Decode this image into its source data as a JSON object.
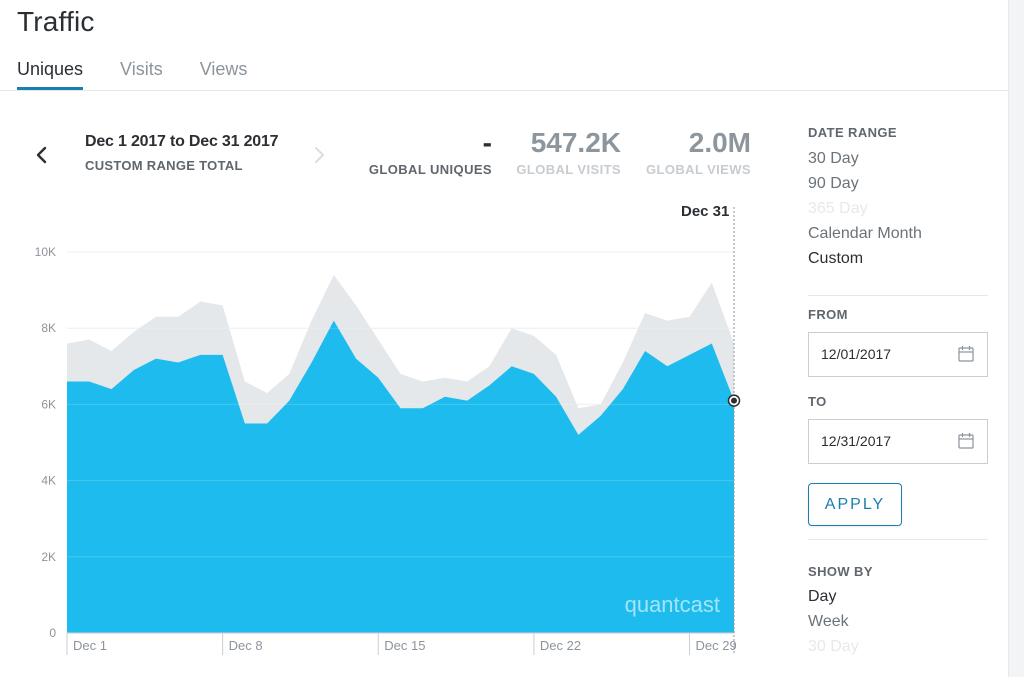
{
  "header": {
    "title": "Traffic",
    "tabs": [
      {
        "label": "Uniques",
        "active": true
      },
      {
        "label": "Visits",
        "active": false
      },
      {
        "label": "Views",
        "active": false
      }
    ]
  },
  "summary": {
    "range_title": "Dec 1 2017 to Dec 31 2017",
    "range_subtitle": "CUSTOM RANGE TOTAL",
    "metrics": {
      "uniques": {
        "value": "-",
        "label": "GLOBAL UNIQUES"
      },
      "visits": {
        "value": "547.2K",
        "label": "GLOBAL VISITS"
      },
      "views": {
        "value": "2.0M",
        "label": "GLOBAL VIEWS"
      }
    }
  },
  "icons": {
    "prev": "chevron-left-icon",
    "next": "chevron-right-icon",
    "calendar": "calendar-icon"
  },
  "colors": {
    "accent": "#1a7fb0",
    "uniques_area": "#1ebcee",
    "visits_area": "#e5e8eb"
  },
  "chart_data": {
    "type": "area",
    "x": [
      "Dec 1",
      "Dec 2",
      "Dec 3",
      "Dec 4",
      "Dec 5",
      "Dec 6",
      "Dec 7",
      "Dec 8",
      "Dec 9",
      "Dec 10",
      "Dec 11",
      "Dec 12",
      "Dec 13",
      "Dec 14",
      "Dec 15",
      "Dec 16",
      "Dec 17",
      "Dec 18",
      "Dec 19",
      "Dec 20",
      "Dec 21",
      "Dec 22",
      "Dec 23",
      "Dec 24",
      "Dec 25",
      "Dec 26",
      "Dec 27",
      "Dec 28",
      "Dec 29",
      "Dec 30",
      "Dec 31"
    ],
    "series": [
      {
        "name": "Visits",
        "values": [
          7600,
          7700,
          7400,
          7900,
          8300,
          8300,
          8700,
          8600,
          6600,
          6300,
          6800,
          8200,
          9400,
          8600,
          7700,
          6800,
          6600,
          6700,
          6600,
          7000,
          8000,
          7800,
          7300,
          5900,
          6000,
          7100,
          8400,
          8200,
          8300,
          9200,
          7600
        ]
      },
      {
        "name": "Uniques",
        "values": [
          6600,
          6600,
          6400,
          6900,
          7200,
          7100,
          7300,
          7300,
          5500,
          5500,
          6100,
          7100,
          8200,
          7200,
          6700,
          5900,
          5900,
          6200,
          6100,
          6500,
          7000,
          6800,
          6200,
          5200,
          5700,
          6400,
          7400,
          7000,
          7300,
          7600,
          6100
        ]
      }
    ],
    "ylim": [
      0,
      10000
    ],
    "y_ticks": [
      0,
      2000,
      4000,
      6000,
      8000,
      10000
    ],
    "y_tick_labels": [
      "0",
      "2K",
      "4K",
      "6K",
      "8K",
      "10K"
    ],
    "x_tick_labels": [
      "Dec 1",
      "Dec 8",
      "Dec 15",
      "Dec 22",
      "Dec 29"
    ],
    "x_tick_indices": [
      0,
      7,
      14,
      21,
      28
    ],
    "hover_label": "Dec 31",
    "hover_index": 30,
    "watermark": "quantcast",
    "grid": true
  },
  "sidebar": {
    "date_range": {
      "heading": "DATE RANGE",
      "options": [
        {
          "label": "30 Day",
          "state": "normal"
        },
        {
          "label": "90 Day",
          "state": "normal"
        },
        {
          "label": "365 Day",
          "state": "disabled"
        },
        {
          "label": "Calendar Month",
          "state": "normal"
        },
        {
          "label": "Custom",
          "state": "selected"
        }
      ]
    },
    "from": {
      "label": "FROM",
      "value": "12/01/2017"
    },
    "to": {
      "label": "TO",
      "value": "12/31/2017"
    },
    "apply_label": "APPLY",
    "show_by": {
      "heading": "SHOW BY",
      "options": [
        {
          "label": "Day",
          "state": "selected"
        },
        {
          "label": "Week",
          "state": "normal"
        },
        {
          "label": "30 Day",
          "state": "disabled"
        }
      ]
    }
  }
}
